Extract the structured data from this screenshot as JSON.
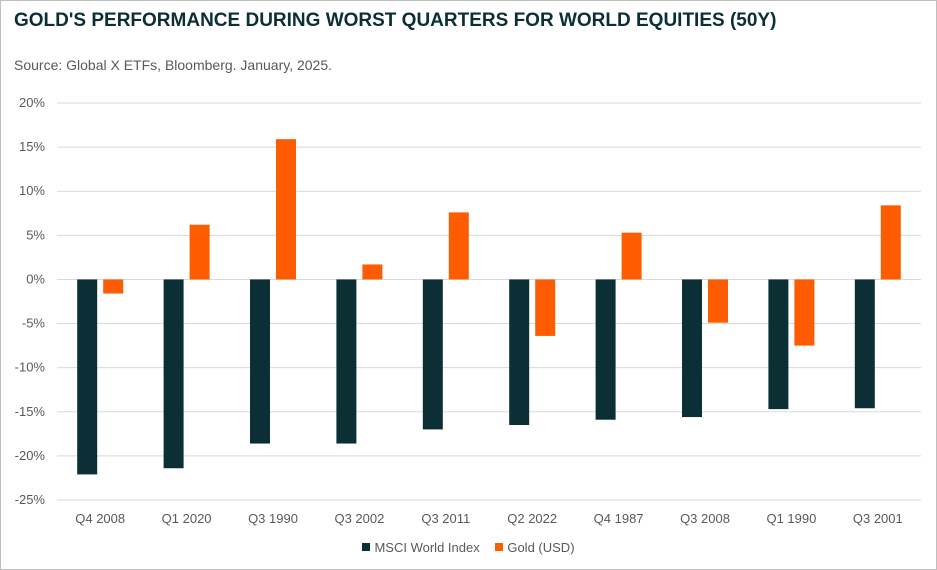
{
  "chart_data": {
    "type": "bar",
    "title": "GOLD'S PERFORMANCE DURING WORST QUARTERS FOR WORLD EQUITIES (50Y)",
    "subtitle": "Source: Global X ETFs, Bloomberg. January, 2025.",
    "categories": [
      "Q4 2008",
      "Q1 2020",
      "Q3 1990",
      "Q3 2002",
      "Q3 2011",
      "Q2 2022",
      "Q4 1987",
      "Q3 2008",
      "Q1 1990",
      "Q3 2001"
    ],
    "series": [
      {
        "name": "MSCI World Index",
        "color": "#0b2f35",
        "values": [
          -22.1,
          -21.4,
          -18.6,
          -18.6,
          -17.0,
          -16.5,
          -15.9,
          -15.6,
          -14.7,
          -14.6
        ]
      },
      {
        "name": "Gold (USD)",
        "color": "#ff5b00",
        "values": [
          -1.6,
          6.2,
          15.9,
          1.7,
          7.6,
          -6.4,
          5.3,
          -4.9,
          -7.5,
          8.4
        ]
      }
    ],
    "ylim": [
      -25,
      20
    ],
    "yticks": [
      20,
      15,
      10,
      5,
      0,
      -5,
      -10,
      -15,
      -20,
      -25
    ],
    "ytick_format": "percent",
    "grid": true,
    "legend": "bottom"
  }
}
